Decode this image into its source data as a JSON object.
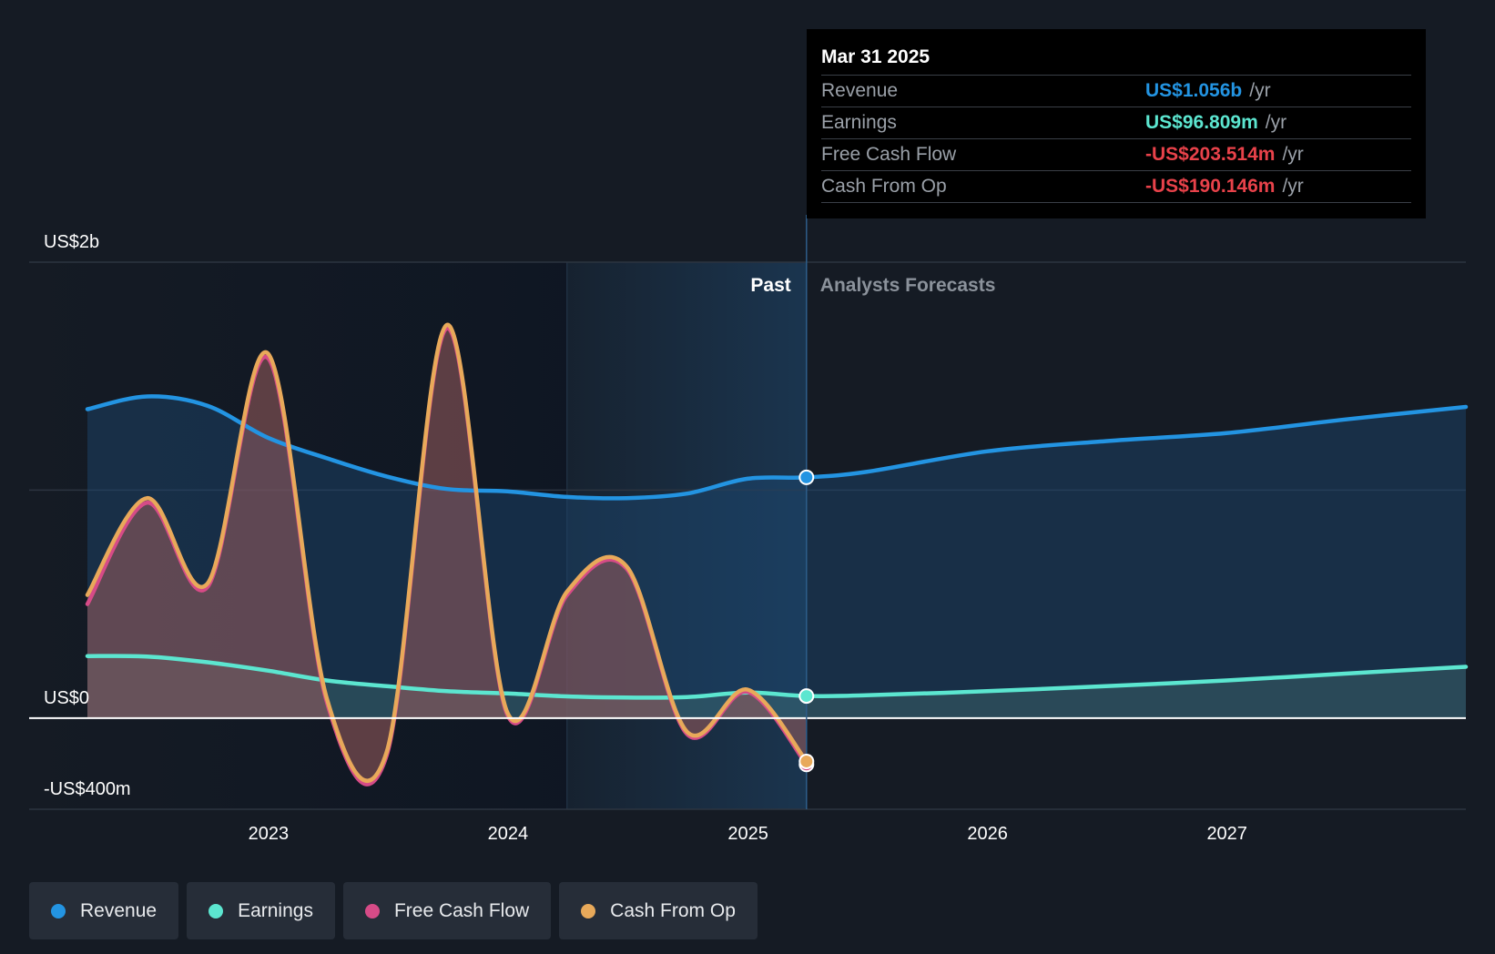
{
  "chart_data": {
    "type": "area",
    "x_ticks": [
      "2023",
      "2024",
      "2025",
      "2026",
      "2027"
    ],
    "y_ticks": [
      {
        "value": 2000,
        "label": "US$2b"
      },
      {
        "value": 0,
        "label": "US$0"
      },
      {
        "value": -400,
        "label": "-US$400m"
      }
    ],
    "y_unit": "US$ millions",
    "ylim": [
      -400,
      2000
    ],
    "xlim": [
      "2022-03-31",
      "2027-12-31"
    ],
    "split_date": "2025-03-31",
    "past_label": "Past",
    "forecast_label": "Analysts Forecasts",
    "grid": true,
    "legend_placement": "bottom",
    "series": [
      {
        "key": "revenue",
        "name": "Revenue",
        "color": "#2394e2",
        "values": [
          [
            "2022-03-31",
            1355
          ],
          [
            "2022-06-30",
            1411
          ],
          [
            "2022-09-30",
            1370
          ],
          [
            "2022-12-31",
            1230
          ],
          [
            "2023-03-31",
            1140
          ],
          [
            "2023-06-30",
            1060
          ],
          [
            "2023-09-30",
            1005
          ],
          [
            "2023-12-31",
            995
          ],
          [
            "2024-03-31",
            970
          ],
          [
            "2024-06-30",
            965
          ],
          [
            "2024-09-30",
            985
          ],
          [
            "2024-12-31",
            1050
          ],
          [
            "2025-03-31",
            1056
          ],
          [
            "2025-06-30",
            1080
          ],
          [
            "2025-12-31",
            1170
          ],
          [
            "2026-06-30",
            1215
          ],
          [
            "2026-12-31",
            1250
          ],
          [
            "2027-06-30",
            1310
          ],
          [
            "2027-12-31",
            1365
          ]
        ]
      },
      {
        "key": "earnings",
        "name": "Earnings",
        "color": "#5ce6d0",
        "values": [
          [
            "2022-03-31",
            272
          ],
          [
            "2022-06-30",
            270
          ],
          [
            "2022-09-30",
            245
          ],
          [
            "2022-12-31",
            208
          ],
          [
            "2023-03-31",
            165
          ],
          [
            "2023-06-30",
            140
          ],
          [
            "2023-09-30",
            118
          ],
          [
            "2023-12-31",
            108
          ],
          [
            "2024-03-31",
            95
          ],
          [
            "2024-06-30",
            90
          ],
          [
            "2024-09-30",
            92
          ],
          [
            "2024-12-31",
            112
          ],
          [
            "2025-03-31",
            96.809
          ],
          [
            "2025-06-30",
            100
          ],
          [
            "2025-12-31",
            118
          ],
          [
            "2026-06-30",
            140
          ],
          [
            "2026-12-31",
            165
          ],
          [
            "2027-06-30",
            195
          ],
          [
            "2027-12-31",
            225
          ]
        ]
      },
      {
        "key": "free_cash_flow",
        "name": "Free Cash Flow",
        "color": "#d64b87",
        "values": [
          [
            "2022-03-31",
            500
          ],
          [
            "2022-06-30",
            945
          ],
          [
            "2022-09-30",
            575
          ],
          [
            "2022-12-31",
            1580
          ],
          [
            "2023-03-31",
            70
          ],
          [
            "2023-06-30",
            -165
          ],
          [
            "2023-09-30",
            1710
          ],
          [
            "2023-12-31",
            15
          ],
          [
            "2024-03-31",
            540
          ],
          [
            "2024-06-30",
            655
          ],
          [
            "2024-09-30",
            -70
          ],
          [
            "2024-12-31",
            115
          ],
          [
            "2025-03-31",
            -203.514
          ]
        ]
      },
      {
        "key": "cash_from_op",
        "name": "Cash From Op",
        "color": "#e8a95a",
        "values": [
          [
            "2022-03-31",
            540
          ],
          [
            "2022-06-30",
            965
          ],
          [
            "2022-09-30",
            590
          ],
          [
            "2022-12-31",
            1600
          ],
          [
            "2023-03-31",
            85
          ],
          [
            "2023-06-30",
            -150
          ],
          [
            "2023-09-30",
            1725
          ],
          [
            "2023-12-31",
            25
          ],
          [
            "2024-03-31",
            555
          ],
          [
            "2024-06-30",
            665
          ],
          [
            "2024-09-30",
            -60
          ],
          [
            "2024-12-31",
            125
          ],
          [
            "2025-03-31",
            -190.146
          ]
        ]
      }
    ]
  },
  "tooltip": {
    "date": "Mar 31 2025",
    "rows": [
      {
        "label": "Revenue",
        "value": "US$1.056b",
        "unit": "/yr",
        "color": "#2394e2"
      },
      {
        "label": "Earnings",
        "value": "US$96.809m",
        "unit": "/yr",
        "color": "#5ce6d0"
      },
      {
        "label": "Free Cash Flow",
        "value": "-US$203.514m",
        "unit": "/yr",
        "color": "#e8424a"
      },
      {
        "label": "Cash From Op",
        "value": "-US$190.146m",
        "unit": "/yr",
        "color": "#e8424a"
      }
    ]
  },
  "legend": [
    {
      "label": "Revenue",
      "color": "#2394e2"
    },
    {
      "label": "Earnings",
      "color": "#5ce6d0"
    },
    {
      "label": "Free Cash Flow",
      "color": "#d64b87"
    },
    {
      "label": "Cash From Op",
      "color": "#e8a95a"
    }
  ]
}
